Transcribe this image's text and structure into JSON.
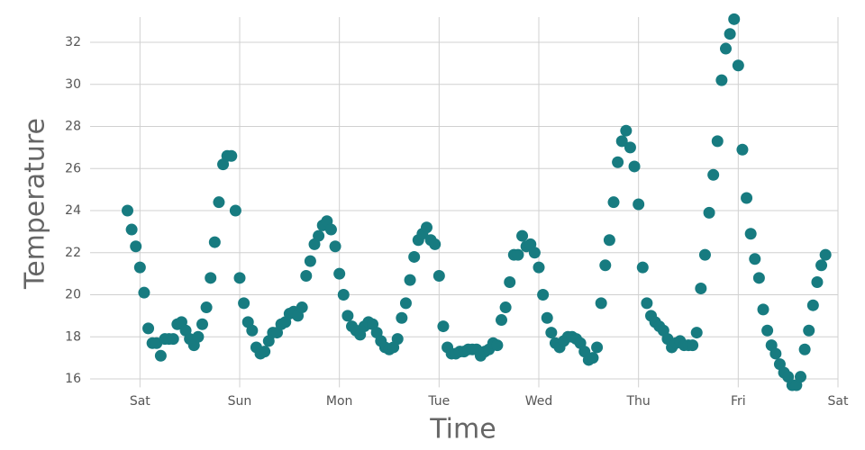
{
  "chart_data": {
    "type": "scatter",
    "x_label": "Time",
    "y_label": "Temperature",
    "color": "#177b80",
    "grid": true,
    "xlim": [
      -12,
      168
    ],
    "ylim": [
      15.6,
      33.2
    ],
    "xticks": [
      {
        "value": 0,
        "label": "Sat"
      },
      {
        "value": 24,
        "label": "Sun"
      },
      {
        "value": 48,
        "label": "Mon"
      },
      {
        "value": 72,
        "label": "Tue"
      },
      {
        "value": 96,
        "label": "Wed"
      },
      {
        "value": 120,
        "label": "Thu"
      },
      {
        "value": 144,
        "label": "Fri"
      },
      {
        "value": 168,
        "label": "Sat"
      }
    ],
    "yticks": [
      16,
      18,
      20,
      22,
      24,
      26,
      28,
      30,
      32
    ],
    "x": [
      -3,
      -2,
      -1,
      0,
      1,
      2,
      3,
      4,
      5,
      6,
      7,
      8,
      9,
      10,
      11,
      12,
      13,
      14,
      15,
      16,
      17,
      18,
      19,
      20,
      21,
      22,
      23,
      24,
      25,
      26,
      27,
      28,
      29,
      30,
      31,
      32,
      33,
      34,
      35,
      36,
      37,
      38,
      39,
      40,
      41,
      42,
      43,
      44,
      45,
      46,
      47,
      48,
      49,
      50,
      51,
      52,
      53,
      54,
      55,
      56,
      57,
      58,
      59,
      60,
      61,
      62,
      63,
      64,
      65,
      66,
      67,
      68,
      69,
      70,
      71,
      72,
      73,
      74,
      75,
      76,
      77,
      78,
      79,
      80,
      81,
      82,
      83,
      84,
      85,
      86,
      87,
      88,
      89,
      90,
      91,
      92,
      93,
      94,
      95,
      96,
      97,
      98,
      99,
      100,
      101,
      102,
      103,
      104,
      105,
      106,
      107,
      108,
      109,
      110,
      111,
      112,
      113,
      114,
      115,
      116,
      117,
      118,
      119,
      120,
      121,
      122,
      123,
      124,
      125,
      126,
      127,
      128,
      129,
      130,
      131,
      132,
      133,
      134,
      135,
      136,
      137,
      138,
      139,
      140,
      141,
      142,
      143,
      144,
      145,
      146,
      147,
      148,
      149,
      150,
      151,
      152,
      153,
      154,
      155,
      156,
      157,
      158,
      159,
      160,
      161,
      162,
      163,
      164,
      165
    ],
    "values": [
      24.0,
      23.1,
      22.3,
      21.3,
      20.1,
      18.4,
      17.7,
      17.7,
      17.1,
      17.9,
      17.9,
      17.9,
      18.6,
      18.7,
      18.3,
      17.9,
      17.6,
      18.0,
      18.6,
      19.4,
      20.8,
      22.5,
      24.4,
      26.2,
      26.6,
      26.6,
      24.0,
      20.8,
      19.6,
      18.7,
      18.3,
      17.5,
      17.2,
      17.3,
      17.8,
      18.2,
      18.2,
      18.6,
      18.7,
      19.1,
      19.2,
      19.0,
      19.4,
      20.9,
      21.6,
      22.4,
      22.8,
      23.3,
      23.5,
      23.1,
      22.3,
      21.0,
      20.0,
      19.0,
      18.5,
      18.3,
      18.1,
      18.5,
      18.7,
      18.6,
      18.2,
      17.8,
      17.5,
      17.4,
      17.5,
      17.9,
      18.9,
      19.6,
      20.7,
      21.8,
      22.6,
      22.9,
      23.2,
      22.6,
      22.4,
      20.9,
      18.5,
      17.5,
      17.2,
      17.2,
      17.3,
      17.3,
      17.4,
      17.4,
      17.4,
      17.1,
      17.3,
      17.4,
      17.7,
      17.6,
      18.8,
      19.4,
      20.6,
      21.9,
      21.9,
      22.8,
      22.3,
      22.4,
      22.0,
      21.3,
      20.0,
      18.9,
      18.2,
      17.7,
      17.5,
      17.8,
      18.0,
      18.0,
      17.9,
      17.7,
      17.3,
      16.9,
      17.0,
      17.5,
      19.6,
      21.4,
      22.6,
      24.4,
      26.3,
      27.3,
      27.8,
      27.0,
      26.1,
      24.3,
      21.3,
      19.6,
      19.0,
      18.7,
      18.5,
      18.3,
      17.9,
      17.5,
      17.7,
      17.8,
      17.6,
      17.6,
      17.6,
      18.2,
      20.3,
      21.9,
      23.9,
      25.7,
      27.3,
      30.2,
      31.7,
      32.4,
      33.1,
      30.9,
      26.9,
      24.6,
      22.9,
      21.7,
      20.8,
      19.3,
      18.3,
      17.6,
      17.2,
      16.7,
      16.3,
      16.1,
      15.7,
      15.7,
      16.1,
      17.4,
      18.3,
      19.5,
      20.6,
      21.4,
      21.9
    ]
  }
}
